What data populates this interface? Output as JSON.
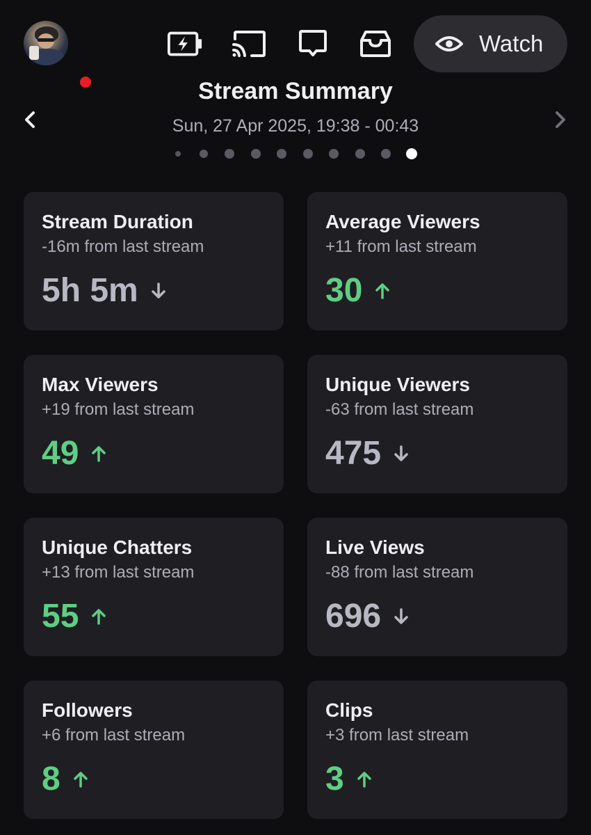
{
  "colors": {
    "background": "#0e0e10",
    "card": "#1f1f23",
    "positive": "#5fce84",
    "negative": "#b8b8c4",
    "live": "#eb1c24"
  },
  "topbar": {
    "avatar_icon": "user-avatar",
    "icons": [
      "energy-icon",
      "cast-icon",
      "chat-icon",
      "inbox-icon"
    ],
    "watch_label": "Watch"
  },
  "header": {
    "title": "Stream Summary",
    "date": "Sun, 27 Apr 2025, 19:38 - 00:43",
    "page_count": 10,
    "active_page": 10
  },
  "cards": [
    {
      "title": "Stream Duration",
      "subtitle": "-16m from last stream",
      "value": "5h 5m",
      "trend": "down"
    },
    {
      "title": "Average Viewers",
      "subtitle": "+11 from last stream",
      "value": "30",
      "trend": "up"
    },
    {
      "title": "Max Viewers",
      "subtitle": "+19 from last stream",
      "value": "49",
      "trend": "up"
    },
    {
      "title": "Unique Viewers",
      "subtitle": "-63 from last stream",
      "value": "475",
      "trend": "down"
    },
    {
      "title": "Unique Chatters",
      "subtitle": "+13 from last stream",
      "value": "55",
      "trend": "up"
    },
    {
      "title": "Live Views",
      "subtitle": "-88 from last stream",
      "value": "696",
      "trend": "down"
    },
    {
      "title": "Followers",
      "subtitle": "+6 from last stream",
      "value": "8",
      "trend": "up"
    },
    {
      "title": "Clips",
      "subtitle": "+3 from last stream",
      "value": "3",
      "trend": "up"
    }
  ]
}
